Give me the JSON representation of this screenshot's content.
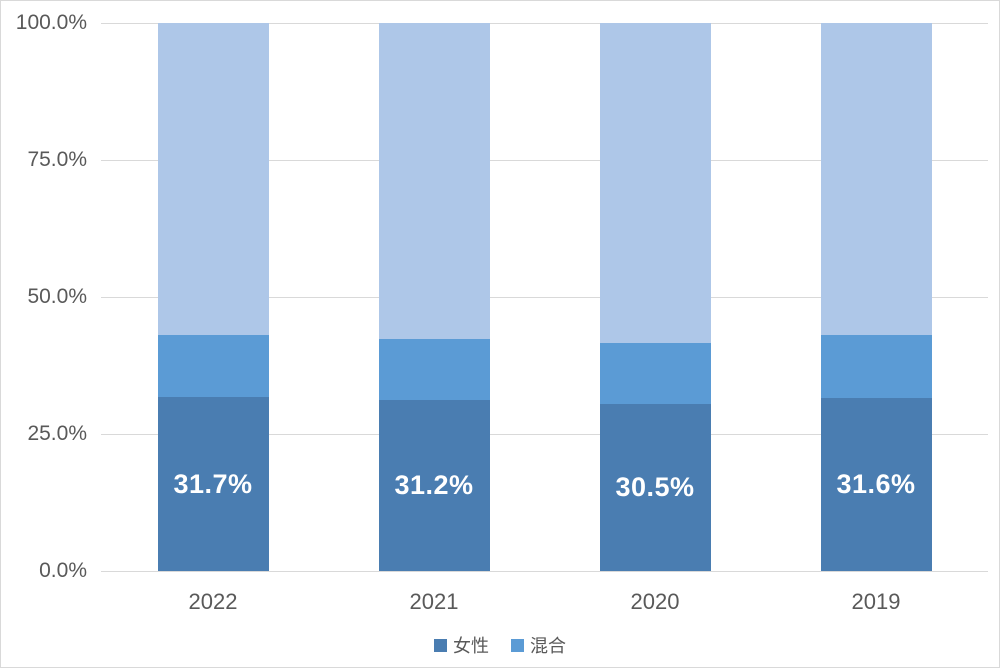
{
  "chart_data": {
    "type": "bar",
    "subtype": "stacked-100-percent",
    "title": "",
    "xlabel": "",
    "ylabel": "",
    "categories": [
      "2022",
      "2021",
      "2020",
      "2019"
    ],
    "series": [
      {
        "name": "女性",
        "color": "#4A7DB1",
        "values": [
          31.7,
          31.2,
          30.5,
          31.6
        ],
        "data_labels": [
          "31.7%",
          "31.2%",
          "30.5%",
          "31.6%"
        ],
        "in_legend": true
      },
      {
        "name": "混合",
        "color": "#5B9BD5",
        "values": [
          11.4,
          11.1,
          11.1,
          11.5
        ],
        "data_labels": null,
        "in_legend": true
      },
      {
        "name": "",
        "color": "#AEC7E8",
        "values": [
          56.9,
          57.7,
          58.4,
          56.9
        ],
        "data_labels": null,
        "in_legend": false
      }
    ],
    "yticks": [
      {
        "value": 0,
        "label": "0.0%"
      },
      {
        "value": 25,
        "label": "25.0%"
      },
      {
        "value": 50,
        "label": "50.0%"
      },
      {
        "value": 75,
        "label": "75.0%"
      },
      {
        "value": 100,
        "label": "100.0%"
      }
    ],
    "ylim": [
      0,
      100
    ],
    "grid": true,
    "legend_position": "bottom",
    "colors": {
      "gridline": "#d9d9d9",
      "axis_text": "#595959",
      "data_label_text": "#ffffff",
      "frame_border": "#d9d9d9",
      "background": "#ffffff"
    }
  }
}
